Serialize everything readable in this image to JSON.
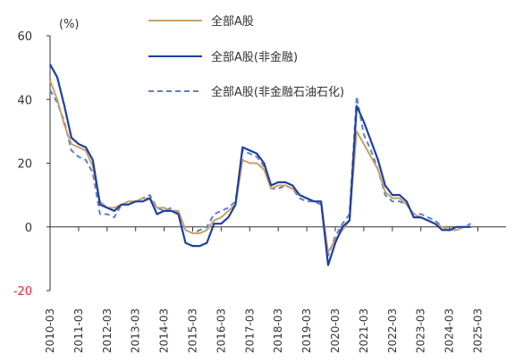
{
  "chart_data": {
    "type": "line",
    "unit_label": "(%)",
    "title": "",
    "xlabel": "",
    "ylabel": "",
    "ylim": [
      -20,
      60
    ],
    "yticks": [
      -20,
      0,
      20,
      40,
      60
    ],
    "negative_tick_color": "#e8262b",
    "axis_color": "#333333",
    "grid": false,
    "legend_position": "top-center",
    "x_tick_labels": [
      "2010-03",
      "2011-03",
      "2012-03",
      "2013-03",
      "2014-03",
      "2015-03",
      "2016-03",
      "2017-03",
      "2018-03",
      "2019-03",
      "2020-03",
      "2021-03",
      "2022-03",
      "2023-03",
      "2024-03",
      "2025-03"
    ],
    "x_quarter_start": "2010-03",
    "series": [
      {
        "name": "全部A股",
        "color": "#c8a06a",
        "style": "solid",
        "values": [
          46,
          40,
          32,
          26,
          25,
          24,
          19,
          8,
          6,
          6,
          7,
          8,
          8,
          9,
          9,
          6,
          6,
          5,
          5,
          -1,
          -2,
          -2,
          -1,
          2,
          3,
          5,
          7,
          21,
          20,
          20,
          18,
          12,
          13,
          13,
          12,
          10,
          9,
          8,
          8,
          -8,
          -4,
          -1,
          2,
          30,
          26,
          22,
          18,
          11,
          9,
          9,
          7,
          4,
          3,
          2,
          1,
          0,
          -1,
          -1,
          0,
          0
        ]
      },
      {
        "name": "全部A股(非金融)",
        "color": "#1f3fa0",
        "style": "solid",
        "values": [
          51,
          47,
          38,
          28,
          26,
          25,
          21,
          7,
          6,
          5,
          7,
          7,
          8,
          8,
          9,
          4,
          5,
          5,
          4,
          -5,
          -6,
          -6,
          -5,
          1,
          1,
          3,
          7,
          25,
          24,
          23,
          20,
          13,
          14,
          14,
          13,
          10,
          9,
          8,
          8,
          -12,
          -5,
          0,
          2,
          38,
          33,
          27,
          21,
          13,
          10,
          10,
          8,
          3,
          3,
          2,
          1,
          -1,
          -1,
          0,
          0,
          0
        ]
      },
      {
        "name": "全部A股(非金融石油石化)",
        "color": "#5b82c7",
        "style": "dashed",
        "values": [
          43,
          39,
          33,
          24,
          22,
          21,
          17,
          4,
          4,
          3,
          7,
          7,
          8,
          9,
          10,
          6,
          5,
          6,
          4,
          -1,
          -2,
          -1,
          0,
          4,
          5,
          6,
          8,
          24,
          23,
          22,
          19,
          12,
          12,
          13,
          12,
          9,
          8,
          8,
          7,
          -9,
          -3,
          1,
          4,
          41,
          29,
          24,
          18,
          10,
          8,
          8,
          7,
          4,
          4,
          3,
          2,
          0,
          -1,
          -1,
          0,
          1
        ]
      }
    ]
  }
}
